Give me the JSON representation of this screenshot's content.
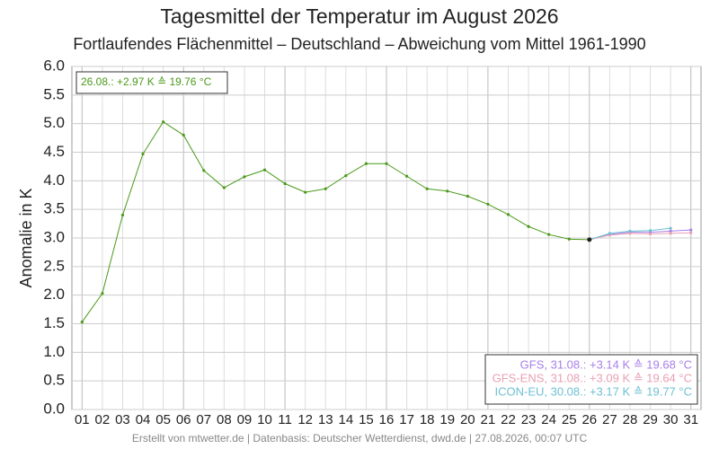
{
  "chart_data": {
    "type": "line",
    "title": "Tagesmittel der Temperatur im August 2026",
    "subtitle": "Fortlaufendes Flächenmittel – Deutschland – Abweichung vom Mittel 1961-1990",
    "y_label": "Anomalie in K",
    "annotation": "26.08.: +2.97 K ≙ 19.76 °C",
    "footer": "Erstellt von mtwetter.de | Datenbasis: Deutscher Wetterdienst, dwd.de | 27.08.2026, 00:07 UTC",
    "categories": [
      "01",
      "02",
      "03",
      "04",
      "05",
      "06",
      "07",
      "08",
      "09",
      "10",
      "11",
      "12",
      "13",
      "14",
      "15",
      "16",
      "17",
      "18",
      "19",
      "20",
      "21",
      "22",
      "23",
      "24",
      "25",
      "26",
      "27",
      "28",
      "29",
      "30",
      "31"
    ],
    "series": [
      {
        "color": "#4a9a1a",
        "values": [
          1.53,
          2.03,
          3.4,
          4.47,
          5.03,
          4.8,
          4.18,
          3.88,
          4.07,
          4.19,
          3.95,
          3.8,
          3.86,
          4.09,
          4.3,
          4.3,
          4.08,
          3.86,
          3.82,
          3.73,
          3.59,
          3.41,
          3.2,
          3.06,
          2.98,
          2.97,
          null,
          null,
          null,
          null,
          null
        ]
      },
      {
        "name": "GFS, 31.08.: +3.14 K ≙ 19.68 °C",
        "color": "#a77fe8",
        "values": [
          null,
          null,
          null,
          null,
          null,
          null,
          null,
          null,
          null,
          null,
          null,
          null,
          null,
          null,
          null,
          null,
          null,
          null,
          null,
          null,
          null,
          null,
          null,
          null,
          null,
          2.97,
          3.06,
          3.1,
          3.1,
          3.12,
          3.14
        ]
      },
      {
        "name": "GFS-ENS, 31.08.: +3.09 K ≙ 19.64 °C",
        "color": "#e8a0b4",
        "values": [
          null,
          null,
          null,
          null,
          null,
          null,
          null,
          null,
          null,
          null,
          null,
          null,
          null,
          null,
          null,
          null,
          null,
          null,
          null,
          null,
          null,
          null,
          null,
          null,
          null,
          2.97,
          3.05,
          3.08,
          3.07,
          3.08,
          3.09
        ]
      },
      {
        "name": "ICON-EU, 30.08.: +3.17 K ≙ 19.77 °C",
        "color": "#6fc0d4",
        "values": [
          null,
          null,
          null,
          null,
          null,
          null,
          null,
          null,
          null,
          null,
          null,
          null,
          null,
          null,
          null,
          null,
          null,
          null,
          null,
          null,
          null,
          null,
          null,
          null,
          null,
          2.97,
          3.08,
          3.12,
          3.13,
          3.17,
          null
        ]
      }
    ],
    "ylim": [
      0,
      6
    ],
    "yticks": [
      {
        "value": 0,
        "label": "0.0"
      },
      {
        "value": 0.5,
        "label": "0.5"
      },
      {
        "value": 1,
        "label": "1.0"
      },
      {
        "value": 1.5,
        "label": "1.5"
      },
      {
        "value": 2,
        "label": "2.0"
      },
      {
        "value": 2.5,
        "label": "2.5"
      },
      {
        "value": 3,
        "label": "3.0"
      },
      {
        "value": 3.5,
        "label": "3.5"
      },
      {
        "value": 4,
        "label": "4.0"
      },
      {
        "value": 4.5,
        "label": "4.5"
      },
      {
        "value": 5,
        "label": "5.0"
      },
      {
        "value": 5.5,
        "label": "5.5"
      },
      {
        "value": 6,
        "label": "6.0"
      }
    ],
    "grid": true,
    "legend": "lower right"
  }
}
